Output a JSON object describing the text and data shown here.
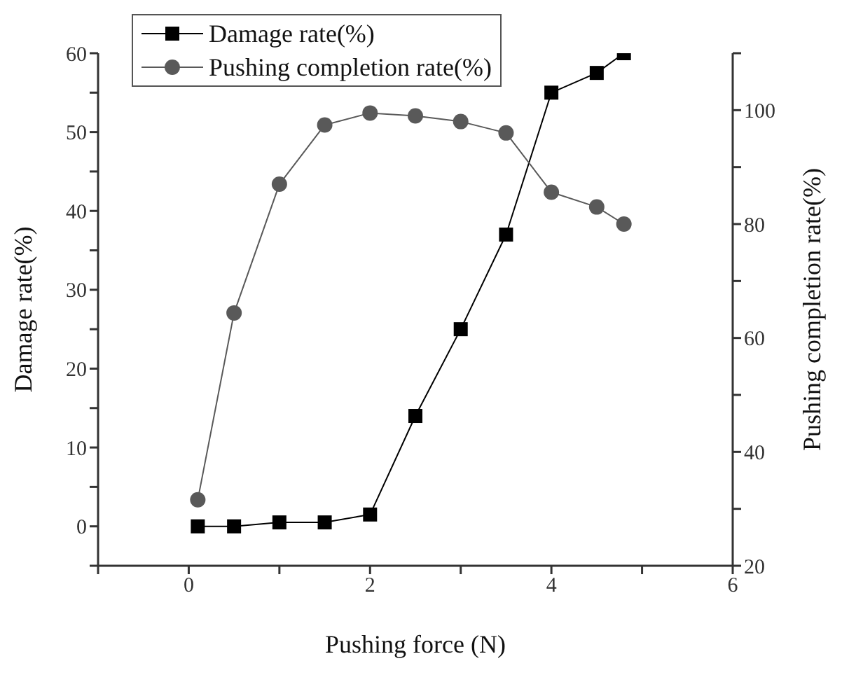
{
  "chart_data": {
    "type": "line",
    "xlabel": "Pushing force (N)",
    "ylabel": "Damage rate(%)",
    "y2label": "Pushing completion rate(%)",
    "x": [
      0.1,
      0.5,
      1,
      1.5,
      2,
      2.5,
      3,
      3.5,
      4,
      4.5,
      4.8
    ],
    "series": [
      {
        "name": "Damage rate(%)",
        "color": "#000000",
        "marker": "square",
        "values": [
          0,
          0,
          0.5,
          0.5,
          1.5,
          14,
          25,
          37,
          55,
          57.5,
          60
        ]
      },
      {
        "name": "Pushing completion rate(%)",
        "color": "#595959",
        "marker": "circle",
        "axis": "y2",
        "values": [
          31.6,
          64.4,
          87,
          97.4,
          99.5,
          99,
          98,
          96,
          85.6,
          83,
          80
        ]
      }
    ],
    "xlim": [
      -1,
      6
    ],
    "xticks": [
      {
        "value": -1,
        "label": null
      },
      0,
      {
        "value": 1,
        "label": null
      },
      2,
      {
        "value": 3,
        "label": null
      },
      4,
      {
        "value": 5,
        "label": null
      },
      6
    ],
    "ylim": [
      -5,
      60
    ],
    "yticks": [
      {
        "value": -5,
        "label": null
      },
      0,
      {
        "value": 5,
        "label": null
      },
      10,
      {
        "value": 15,
        "label": null
      },
      20,
      {
        "value": 25,
        "label": null
      },
      30,
      {
        "value": 35,
        "label": null
      },
      40,
      {
        "value": 45,
        "label": null
      },
      50,
      {
        "value": 55,
        "label": null
      },
      60
    ],
    "y2lim": [
      20,
      110
    ],
    "y2ticks": [
      20,
      {
        "value": 30,
        "label": null
      },
      40,
      {
        "value": 50,
        "label": null
      },
      60,
      {
        "value": 70,
        "label": null
      },
      80,
      {
        "value": 90,
        "label": null
      },
      100,
      {
        "value": 110,
        "label": null
      }
    ],
    "grid": false,
    "legend": "top left",
    "line_style": "solid"
  }
}
